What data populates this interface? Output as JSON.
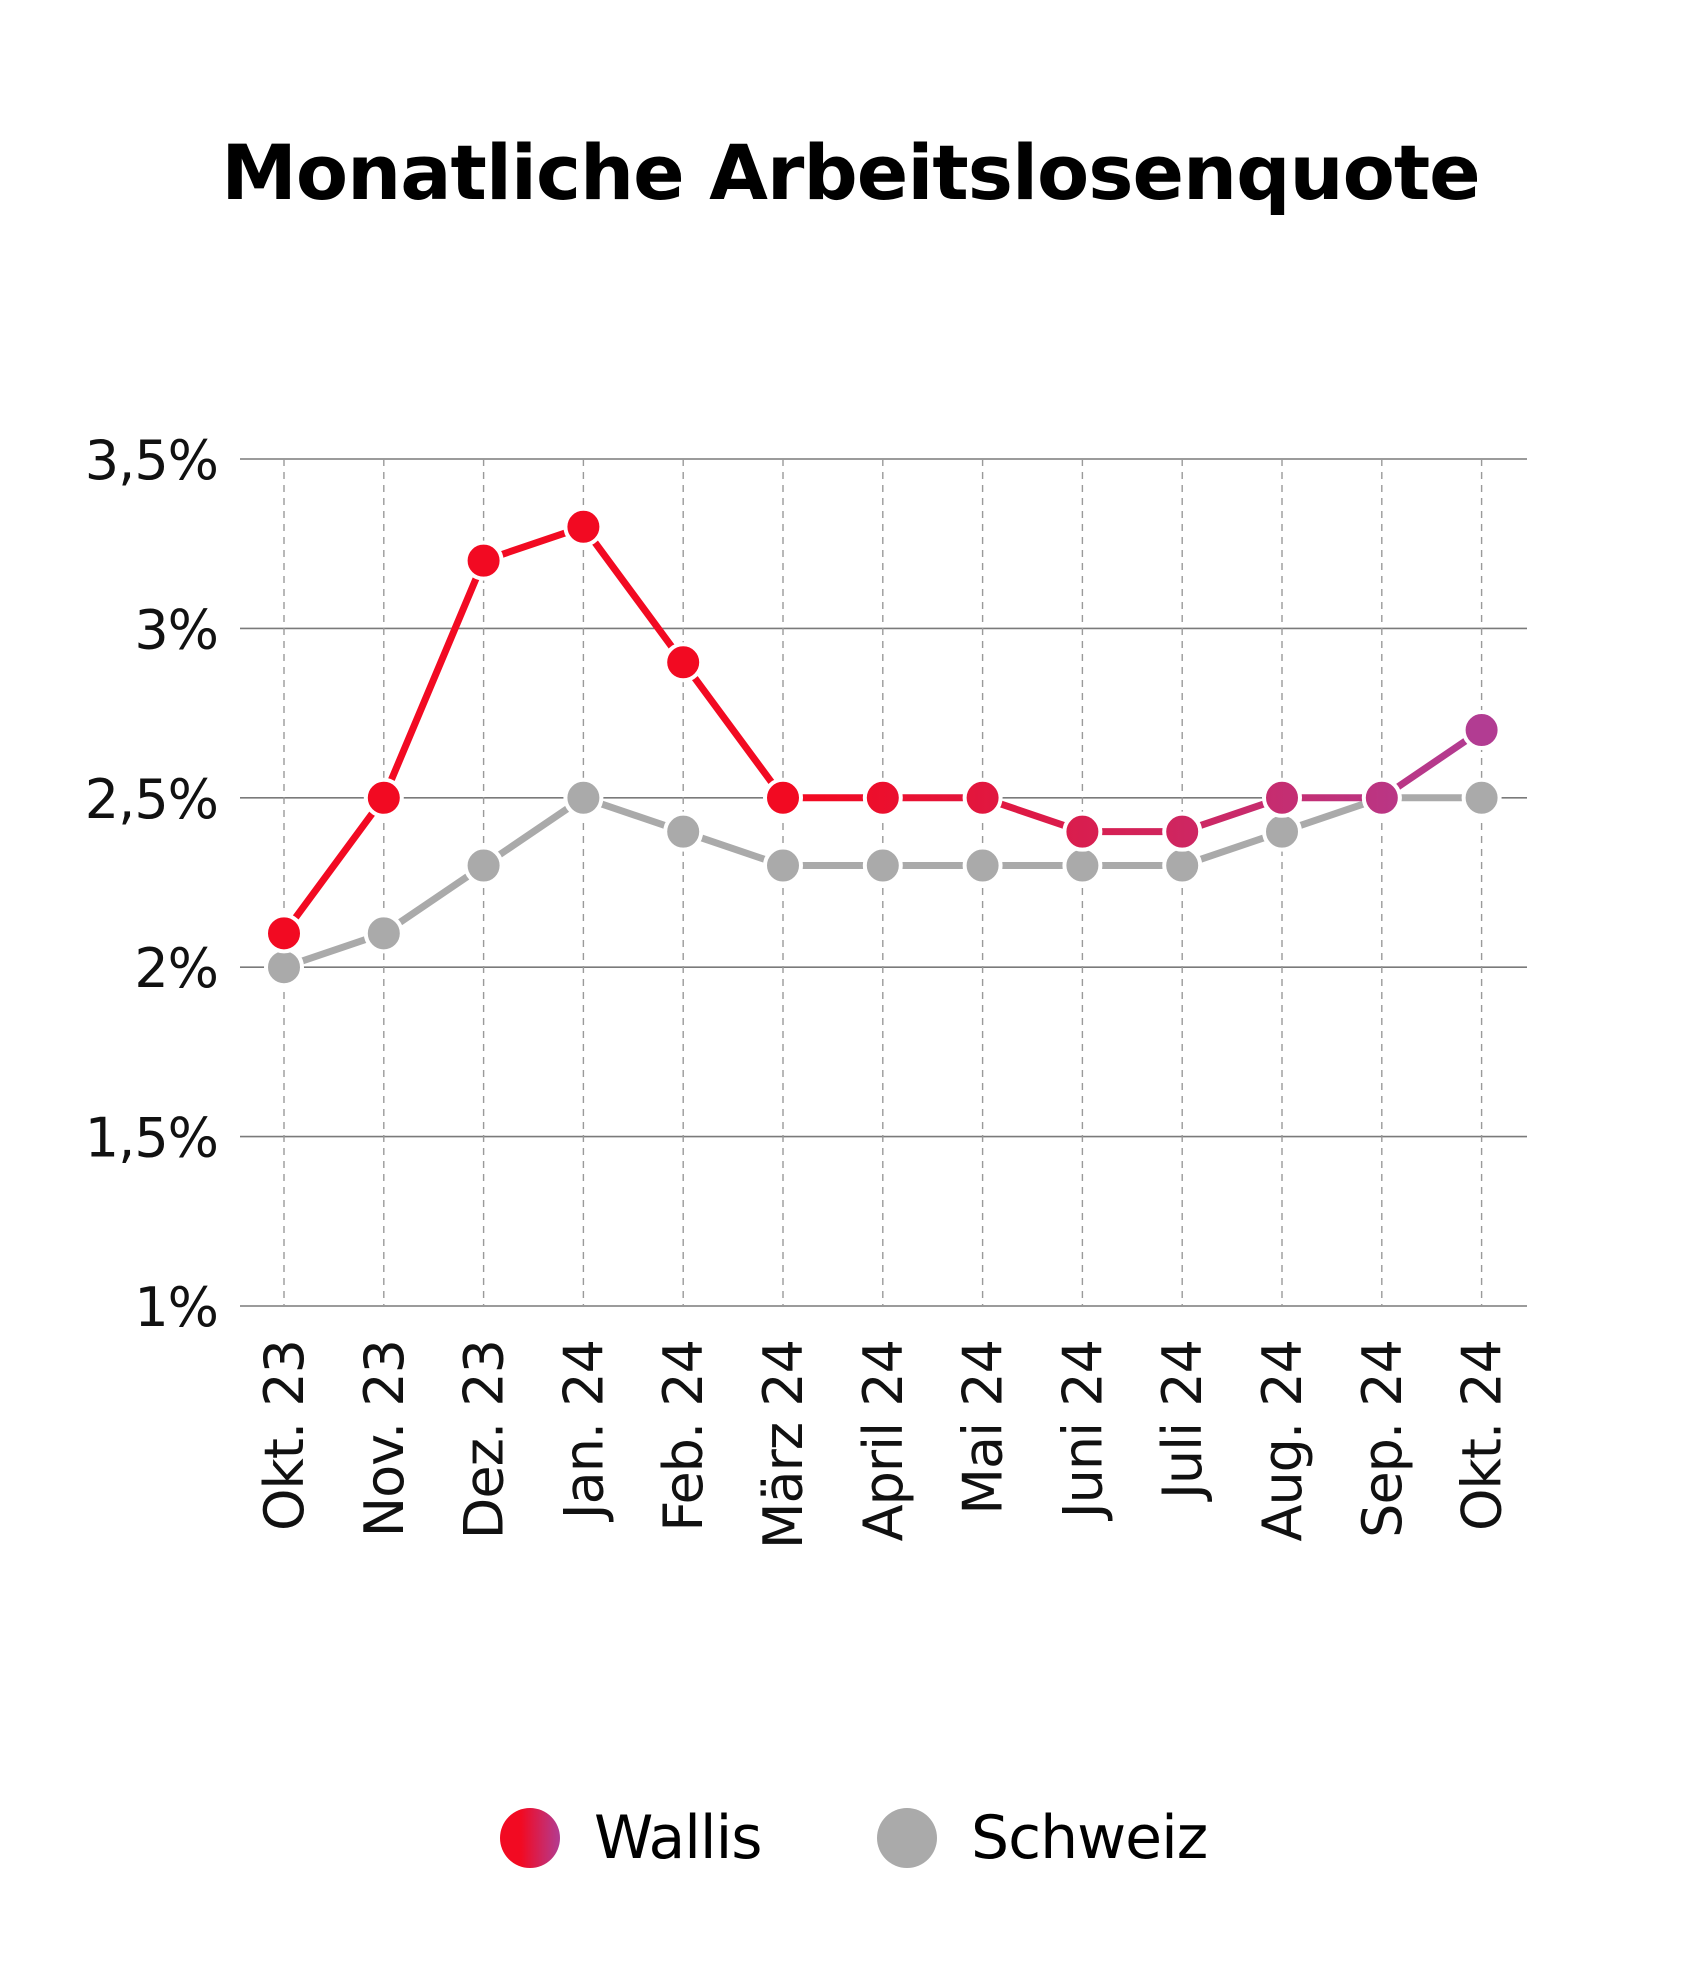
{
  "title": "Monatliche Arbeitslosenquote",
  "colors": {
    "wallis_start": "#f20a22",
    "wallis_end": "#b23c92",
    "schweiz": "#aaaaaa",
    "grid": "#7a7a7a",
    "vgrid": "#9a9a9a"
  },
  "legend": [
    {
      "label": "Wallis"
    },
    {
      "label": "Schweiz"
    }
  ],
  "chart_data": {
    "type": "line",
    "title": "Monatliche Arbeitslosenquote",
    "xlabel": "",
    "ylabel": "",
    "categories": [
      "Okt. 23",
      "Nov. 23",
      "Dez. 23",
      "Jan. 24",
      "Feb. 24",
      "März 24",
      "April 24",
      "Mai 24",
      "Juni 24",
      "Juli 24",
      "Aug. 24",
      "Sep. 24",
      "Okt. 24"
    ],
    "yticks": [
      1,
      1.5,
      2,
      2.5,
      3,
      3.5
    ],
    "ytick_labels": [
      "1%",
      "1,5%",
      "2%",
      "2,5%",
      "3%",
      "3,5%"
    ],
    "ylim": [
      1,
      3.5
    ],
    "grid": true,
    "legend_position": "bottom",
    "series": [
      {
        "name": "Wallis",
        "values": [
          2.1,
          2.5,
          3.2,
          3.3,
          2.9,
          2.5,
          2.5,
          2.5,
          2.4,
          2.4,
          2.5,
          2.5,
          2.7
        ]
      },
      {
        "name": "Schweiz",
        "values": [
          2.0,
          2.1,
          2.3,
          2.5,
          2.4,
          2.3,
          2.3,
          2.3,
          2.3,
          2.3,
          2.4,
          2.5,
          2.5
        ]
      }
    ]
  }
}
